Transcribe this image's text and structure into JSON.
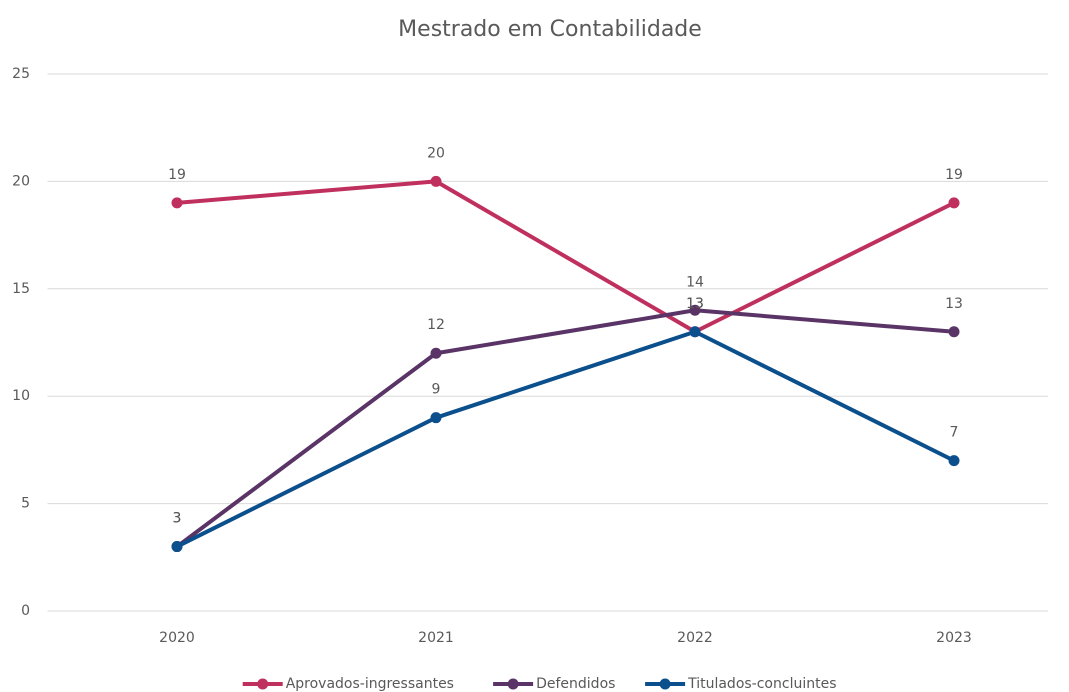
{
  "chart_data": {
    "type": "line",
    "title": "Mestrado em Contabilidade",
    "categories": [
      "2020",
      "2021",
      "2022",
      "2023"
    ],
    "series": [
      {
        "name": "Aprovados-ingressantes",
        "color": "#c0305e",
        "values": [
          19,
          20,
          13,
          19
        ]
      },
      {
        "name": "Defendidos",
        "color": "#5a3466",
        "values": [
          3,
          12,
          14,
          13
        ]
      },
      {
        "name": "Titulados-concluintes",
        "color": "#0b4f8c",
        "values": [
          3,
          9,
          13,
          7
        ]
      }
    ],
    "ylim": [
      0,
      25
    ],
    "yticks": [
      0,
      5,
      10,
      15,
      20,
      25
    ],
    "grid": true,
    "legend": "bottom"
  }
}
